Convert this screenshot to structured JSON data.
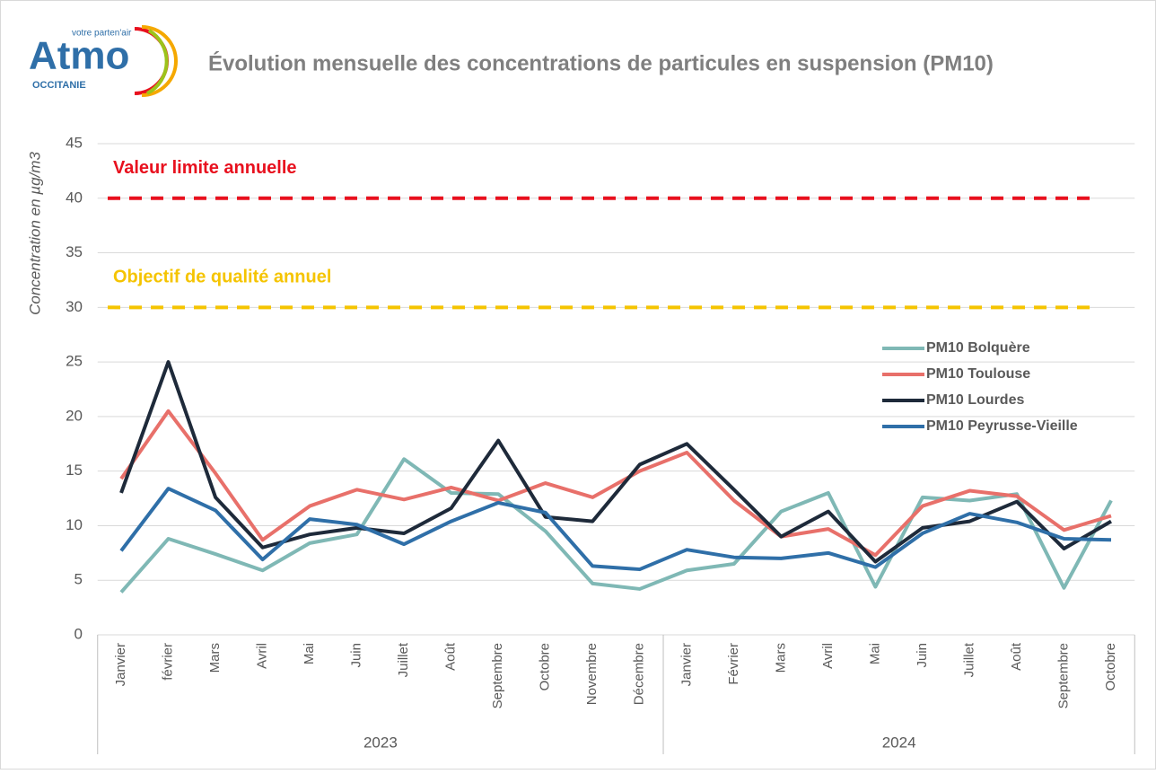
{
  "logo": {
    "name": "Atmo",
    "tagline": "votre parten'air",
    "region": "OCCITANIE"
  },
  "chart_data": {
    "type": "line",
    "title": "Évolution mensuelle des concentrations de particules en suspension (PM10)",
    "y_label": "Concentration en µg/m3",
    "categories": [
      "Janvier",
      "février",
      "Mars",
      "Avril",
      "Mai",
      "Juin",
      "Juillet",
      "Août",
      "Septembre",
      "Octobre",
      "Novembre",
      "Décembre",
      "Janvier",
      "Février",
      "Mars",
      "Avril",
      "Mai",
      "Juin",
      "Juillet",
      "Août",
      "Septembre",
      "Octobre"
    ],
    "groups": [
      {
        "label": "2023",
        "count": 12
      },
      {
        "label": "2024",
        "count": 10
      }
    ],
    "ylim": [
      0,
      45
    ],
    "yticks": [
      0,
      5,
      10,
      15,
      20,
      25,
      30,
      35,
      40,
      45
    ],
    "grid": true,
    "legend": "right",
    "reference_lines": [
      {
        "label": "Valeur limite annuelle",
        "value": 40,
        "color": "#e8101e"
      },
      {
        "label": "Objectif de qualité annuel",
        "value": 30,
        "color": "#f5c400"
      }
    ],
    "series": [
      {
        "name": "PM10 Bolquère",
        "color": "#7fb8b5",
        "values": [
          3.9,
          8.8,
          7.4,
          5.9,
          8.4,
          9.2,
          16.1,
          13.0,
          12.9,
          9.5,
          4.7,
          4.2,
          5.9,
          6.5,
          11.3,
          13.0,
          4.4,
          12.6,
          12.3,
          12.9,
          4.3,
          12.3
        ]
      },
      {
        "name": "PM10 Toulouse",
        "color": "#e8706a",
        "values": [
          14.3,
          20.5,
          14.8,
          8.7,
          11.8,
          13.3,
          12.4,
          13.5,
          12.3,
          13.9,
          12.6,
          15.0,
          16.7,
          12.3,
          9.0,
          9.7,
          7.3,
          11.8,
          13.2,
          12.7,
          9.6,
          10.9
        ]
      },
      {
        "name": "PM10 Lourdes",
        "color": "#1e2a3a",
        "values": [
          13.0,
          25.0,
          12.6,
          8.0,
          9.2,
          9.8,
          9.3,
          11.6,
          17.8,
          10.8,
          10.4,
          15.6,
          17.5,
          13.3,
          9.0,
          11.3,
          6.7,
          9.8,
          10.4,
          12.2,
          7.9,
          10.4
        ]
      },
      {
        "name": "PM10 Peyrusse-Vieille",
        "color": "#2f6fa8",
        "values": [
          7.7,
          13.4,
          11.4,
          6.9,
          10.6,
          10.1,
          8.3,
          10.4,
          12.1,
          11.2,
          6.3,
          6.0,
          7.8,
          7.1,
          7.0,
          7.5,
          6.2,
          9.3,
          11.1,
          10.3,
          8.8,
          8.7
        ]
      }
    ]
  }
}
